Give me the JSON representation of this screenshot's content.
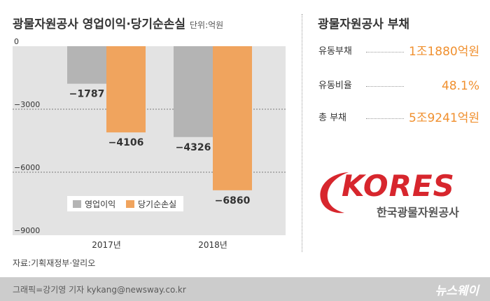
{
  "header": {
    "title": "광물자원공사 영업이익·당기순손실",
    "unit": "단위:억원"
  },
  "chart_data": {
    "type": "bar",
    "categories": [
      "2017년",
      "2018년"
    ],
    "series": [
      {
        "name": "영업이익",
        "values": [
          -1787,
          -4326
        ],
        "color": "#b4b4b4"
      },
      {
        "name": "당기순손실",
        "values": [
          -4106,
          -6860
        ],
        "color": "#f0a45e"
      }
    ],
    "data_labels": [
      [
        "−1787",
        "−4106"
      ],
      [
        "−4326",
        "−6860"
      ]
    ],
    "y_ticks": [
      "0",
      "−3000",
      "−6000",
      "−9000"
    ],
    "y_tick_values": [
      0,
      -3000,
      -6000,
      -9000
    ],
    "ylim": [
      -9000,
      0
    ],
    "grid": true,
    "legend_position": "bottom-left"
  },
  "source": "자료:기획재정부·알리오",
  "debt_panel": {
    "title": "광물자원공사 부채",
    "items": [
      {
        "label": "유동부채",
        "value": "1조1880억원"
      },
      {
        "label": "유동비율",
        "value": "48.1%"
      },
      {
        "label": "총 부채",
        "value": "5조9241억원"
      }
    ]
  },
  "logo": {
    "wordmark": "KORES",
    "org_name": "한국광물자원공사"
  },
  "footer": {
    "credit": "그래픽=강기영 기자 kykang@newsway.co.kr",
    "brand": "뉴스웨이"
  }
}
